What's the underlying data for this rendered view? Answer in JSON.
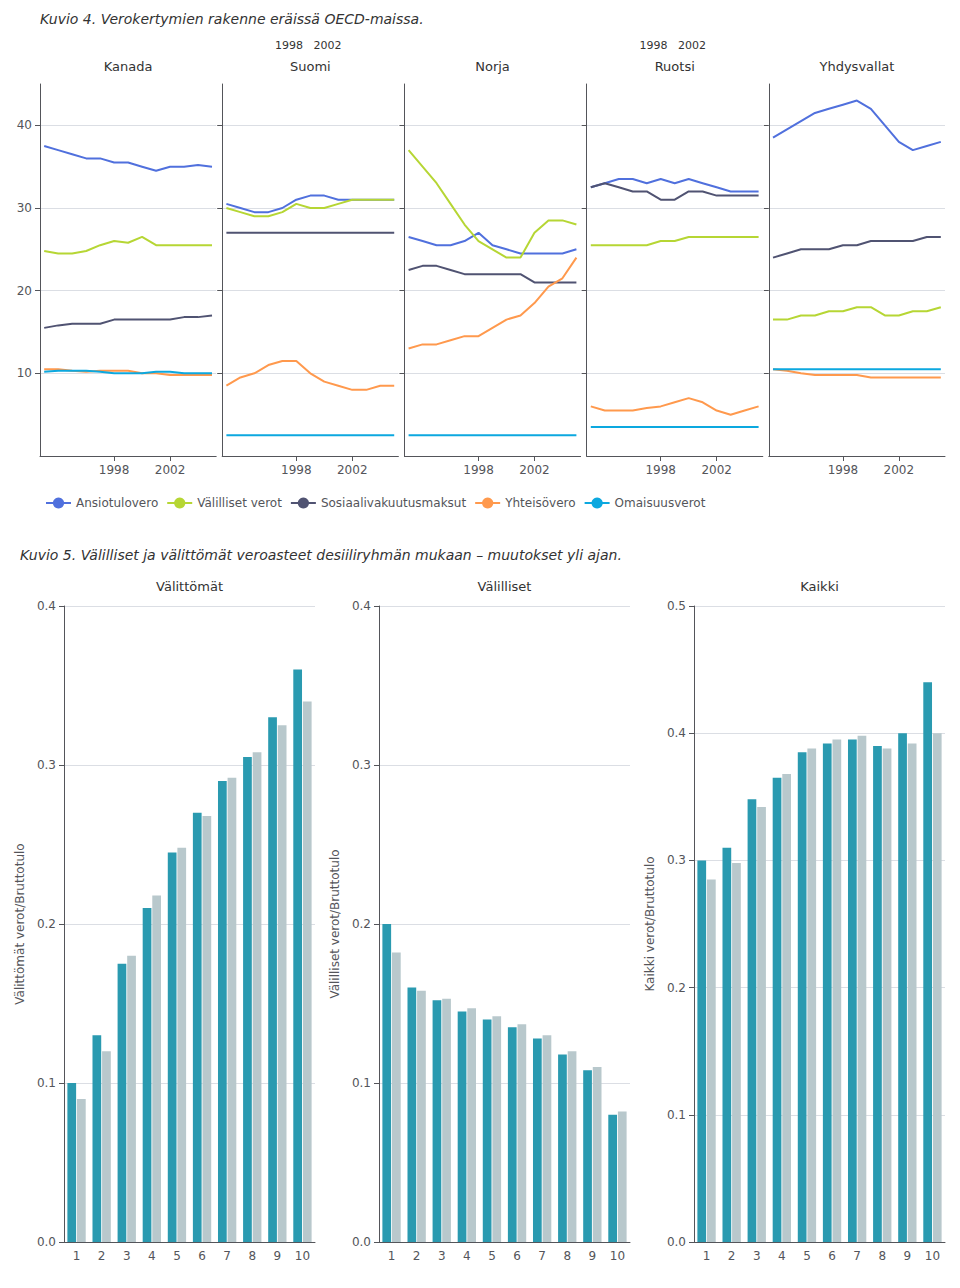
{
  "chart_data": [
    {
      "type": "line",
      "title": "Kuvio 4. Verokertymien rakenne eräissä OECD-maissa.",
      "legend": "bottom",
      "panels": [
        {
          "title": "Kanada",
          "x": [
            1993,
            1994,
            1995,
            1996,
            1997,
            1998,
            1999,
            2000,
            2001,
            2002,
            2003,
            2004,
            2005
          ],
          "xlim": [
            1992.7,
            2005.3
          ],
          "xticks": [
            1998,
            2002
          ],
          "ylim": [
            0,
            45
          ],
          "yticks": [
            10,
            20,
            30,
            40
          ],
          "grid": true,
          "series": [
            {
              "name": "Ansiotulovero",
              "values": [
                37.5,
                37.0,
                36.5,
                36.0,
                36.0,
                35.5,
                35.5,
                35.0,
                34.5,
                35.0,
                35.0,
                35.2,
                35.0
              ]
            },
            {
              "name": "Välilliset verot",
              "values": [
                24.8,
                24.5,
                24.5,
                24.8,
                25.5,
                26.0,
                25.8,
                26.5,
                25.5,
                25.5,
                25.5,
                25.5,
                25.5
              ]
            },
            {
              "name": "Sosiaalivakuutusmaksut",
              "values": [
                15.5,
                15.8,
                16.0,
                16.0,
                16.0,
                16.5,
                16.5,
                16.5,
                16.5,
                16.5,
                16.8,
                16.8,
                17.0
              ]
            },
            {
              "name": "Yhteisövero",
              "values": [
                10.5,
                10.5,
                10.3,
                10.2,
                10.3,
                10.3,
                10.3,
                10.0,
                10.0,
                9.8,
                9.8,
                9.8,
                9.8
              ]
            },
            {
              "name": "Omaisuusverot",
              "values": [
                10.2,
                10.3,
                10.3,
                10.3,
                10.2,
                10.0,
                10.0,
                10.0,
                10.2,
                10.2,
                10.0,
                10.0,
                10.0
              ]
            }
          ]
        },
        {
          "title": "Suomi",
          "annotations": [
            "1998   2002"
          ],
          "tick_labels": "x",
          "x": [
            1993,
            1994,
            1995,
            1996,
            1997,
            1998,
            1999,
            2000,
            2001,
            2002,
            2003,
            2004,
            2005
          ],
          "xlim": [
            1992.7,
            2005.3
          ],
          "xticks": [
            1998,
            2002
          ],
          "ylim": [
            0,
            45
          ],
          "yticks": [
            10,
            20,
            30,
            40
          ],
          "grid": true,
          "series": [
            {
              "name": "Ansiotulovero",
              "values": [
                30.5,
                30.0,
                29.5,
                29.5,
                30.0,
                31.0,
                31.5,
                31.5,
                31.0,
                31.0,
                31.0,
                31.0,
                31.0
              ]
            },
            {
              "name": "Välilliset verot",
              "values": [
                30.0,
                29.5,
                29.0,
                29.0,
                29.5,
                30.5,
                30.0,
                30.0,
                30.5,
                31.0,
                31.0,
                31.0,
                31.0
              ]
            },
            {
              "name": "Sosiaalivakuutusmaksut",
              "values": [
                27.0,
                27.0,
                27.0,
                27.0,
                27.0,
                27.0,
                27.0,
                27.0,
                27.0,
                27.0,
                27.0,
                27.0,
                27.0
              ]
            },
            {
              "name": "Yhteisövero",
              "values": [
                8.5,
                9.5,
                10.0,
                11.0,
                11.5,
                11.5,
                10.0,
                9.0,
                8.5,
                8.0,
                8.0,
                8.5,
                8.5
              ]
            },
            {
              "name": "Omaisuusverot",
              "values": [
                2.5,
                2.5,
                2.5,
                2.5,
                2.5,
                2.5,
                2.5,
                2.5,
                2.5,
                2.5,
                2.5,
                2.5,
                2.5
              ]
            }
          ]
        },
        {
          "title": "Norja",
          "tick_labels": "x",
          "x": [
            1993,
            1994,
            1995,
            1996,
            1997,
            1998,
            1999,
            2000,
            2001,
            2002,
            2003,
            2004,
            2005
          ],
          "xlim": [
            1992.7,
            2005.3
          ],
          "xticks": [
            1998,
            2002
          ],
          "ylim": [
            0,
            45
          ],
          "yticks": [
            10,
            20,
            30,
            40
          ],
          "grid": true,
          "series": [
            {
              "name": "Ansiotulovero",
              "values": [
                26.5,
                26.0,
                25.5,
                25.5,
                26.0,
                27.0,
                25.5,
                25.0,
                24.5,
                24.5,
                24.5,
                24.5,
                25.0
              ]
            },
            {
              "name": "Välilliset verot",
              "values": [
                37.0,
                35.0,
                33.0,
                30.5,
                28.0,
                26.0,
                25.0,
                24.0,
                24.0,
                27.0,
                28.5,
                28.5,
                28.0
              ]
            },
            {
              "name": "Sosiaalivakuutusmaksut",
              "values": [
                22.5,
                23.0,
                23.0,
                22.5,
                22.0,
                22.0,
                22.0,
                22.0,
                22.0,
                21.0,
                21.0,
                21.0,
                21.0
              ]
            },
            {
              "name": "Yhteisövero",
              "values": [
                13.0,
                13.5,
                13.5,
                14.0,
                14.5,
                14.5,
                15.5,
                16.5,
                17.0,
                18.5,
                20.5,
                21.5,
                24.0
              ]
            },
            {
              "name": "Omaisuusverot",
              "values": [
                2.5,
                2.5,
                2.5,
                2.5,
                2.5,
                2.5,
                2.5,
                2.5,
                2.5,
                2.5,
                2.5,
                2.5,
                2.5
              ]
            }
          ]
        },
        {
          "title": "Ruotsi",
          "annotations": [
            "1998   2002"
          ],
          "tick_labels": "x",
          "x": [
            1993,
            1994,
            1995,
            1996,
            1997,
            1998,
            1999,
            2000,
            2001,
            2002,
            2003,
            2004,
            2005
          ],
          "xlim": [
            1992.7,
            2005.3
          ],
          "xticks": [
            1998,
            2002
          ],
          "ylim": [
            0,
            45
          ],
          "yticks": [
            10,
            20,
            30,
            40
          ],
          "grid": true,
          "series": [
            {
              "name": "Ansiotulovero",
              "values": [
                32.5,
                33.0,
                33.5,
                33.5,
                33.0,
                33.5,
                33.0,
                33.5,
                33.0,
                32.5,
                32.0,
                32.0,
                32.0
              ]
            },
            {
              "name": "Välilliset verot",
              "values": [
                25.5,
                25.5,
                25.5,
                25.5,
                25.5,
                26.0,
                26.0,
                26.5,
                26.5,
                26.5,
                26.5,
                26.5,
                26.5
              ]
            },
            {
              "name": "Sosiaalivakuutusmaksut",
              "values": [
                32.5,
                33.0,
                32.5,
                32.0,
                32.0,
                31.0,
                31.0,
                32.0,
                32.0,
                31.5,
                31.5,
                31.5,
                31.5
              ]
            },
            {
              "name": "Yhteisövero",
              "values": [
                6.0,
                5.5,
                5.5,
                5.5,
                5.8,
                6.0,
                6.5,
                7.0,
                6.5,
                5.5,
                5.0,
                5.5,
                6.0
              ]
            },
            {
              "name": "Omaisuusverot",
              "values": [
                3.5,
                3.5,
                3.5,
                3.5,
                3.5,
                3.5,
                3.5,
                3.5,
                3.5,
                3.5,
                3.5,
                3.5,
                3.5
              ]
            }
          ]
        },
        {
          "title": "Yhdysvallat",
          "tick_labels": "x",
          "x": [
            1993,
            1994,
            1995,
            1996,
            1997,
            1998,
            1999,
            2000,
            2001,
            2002,
            2003,
            2004,
            2005
          ],
          "xlim": [
            1992.7,
            2005.3
          ],
          "xticks": [
            1998,
            2002
          ],
          "ylim": [
            0,
            45
          ],
          "yticks": [
            10,
            20,
            30,
            40
          ],
          "grid": true,
          "series": [
            {
              "name": "Ansiotulovero",
              "values": [
                38.5,
                39.5,
                40.5,
                41.5,
                42.0,
                42.5,
                43.0,
                42.0,
                40.0,
                38.0,
                37.0,
                37.5,
                38.0
              ]
            },
            {
              "name": "Välilliset verot",
              "values": [
                16.5,
                16.5,
                17.0,
                17.0,
                17.5,
                17.5,
                18.0,
                18.0,
                17.0,
                17.0,
                17.5,
                17.5,
                18.0
              ]
            },
            {
              "name": "Sosiaalivakuutusmaksut",
              "values": [
                24.0,
                24.5,
                25.0,
                25.0,
                25.0,
                25.5,
                25.5,
                26.0,
                26.0,
                26.0,
                26.0,
                26.5,
                26.5
              ]
            },
            {
              "name": "Yhteisövero",
              "values": [
                10.5,
                10.3,
                10.0,
                9.8,
                9.8,
                9.8,
                9.8,
                9.5,
                9.5,
                9.5,
                9.5,
                9.5,
                9.5
              ]
            },
            {
              "name": "Omaisuusverot",
              "values": [
                10.5,
                10.5,
                10.5,
                10.5,
                10.5,
                10.5,
                10.5,
                10.5,
                10.5,
                10.5,
                10.5,
                10.5,
                10.5
              ]
            }
          ]
        }
      ]
    },
    {
      "type": "bar",
      "title": "Kuvio 5. Välilliset ja välittömät veroasteet desiiliryhmän mukaan – muutokset yli ajan.",
      "panels": [
        {
          "title": "Välittömät",
          "ylabel": "Välittömät verot/Bruttotulo",
          "categories": [
            "1",
            "2",
            "3",
            "4",
            "5",
            "6",
            "7",
            "8",
            "9",
            "10"
          ],
          "ylim": [
            0.0,
            0.4
          ],
          "yticks": [
            {
              "value": 0.0,
              "label": "0.0"
            },
            0.1,
            0.2,
            0.3,
            0.4
          ],
          "grid": true,
          "series": [
            {
              "color": "#2a9ab0",
              "values": [
                0.1,
                0.13,
                0.175,
                0.21,
                0.245,
                0.27,
                0.29,
                0.305,
                0.33,
                0.36
              ]
            },
            {
              "color": "#b8c8cc",
              "values": [
                0.09,
                0.12,
                0.18,
                0.218,
                0.248,
                0.268,
                0.292,
                0.308,
                0.325,
                0.34
              ]
            }
          ]
        },
        {
          "title": "Välilliset",
          "ylabel": "Välilliset verot/Bruttotulo",
          "categories": [
            "1",
            "2",
            "3",
            "4",
            "5",
            "6",
            "7",
            "8",
            "9",
            "10"
          ],
          "ylim": [
            0.0,
            0.4
          ],
          "yticks": [
            {
              "value": 0.0,
              "label": "0.0"
            },
            0.1,
            0.2,
            0.3,
            0.4
          ],
          "grid": true,
          "series": [
            {
              "color": "#2a9ab0",
              "values": [
                0.2,
                0.16,
                0.152,
                0.145,
                0.14,
                0.135,
                0.128,
                0.118,
                0.108,
                0.08
              ]
            },
            {
              "color": "#b8c8cc",
              "values": [
                0.182,
                0.158,
                0.153,
                0.147,
                0.142,
                0.137,
                0.13,
                0.12,
                0.11,
                0.082
              ]
            }
          ]
        },
        {
          "title": "Kaikki",
          "ylabel": "Kaikki verot/Bruttotulo",
          "categories": [
            "1",
            "2",
            "3",
            "4",
            "5",
            "6",
            "7",
            "8",
            "9",
            "10"
          ],
          "ylim": [
            0.0,
            0.5
          ],
          "yticks": [
            {
              "value": 0.0,
              "label": "0.0"
            },
            0.1,
            0.2,
            0.3,
            0.4,
            0.5
          ],
          "grid": true,
          "series": [
            {
              "color": "#2a9ab0",
              "values": [
                0.3,
                0.31,
                0.348,
                0.365,
                0.385,
                0.392,
                0.395,
                0.39,
                0.4,
                0.44
              ]
            },
            {
              "color": "#b8c8cc",
              "values": [
                0.285,
                0.298,
                0.342,
                0.368,
                0.388,
                0.395,
                0.398,
                0.388,
                0.392,
                0.4
              ]
            }
          ]
        }
      ]
    }
  ]
}
